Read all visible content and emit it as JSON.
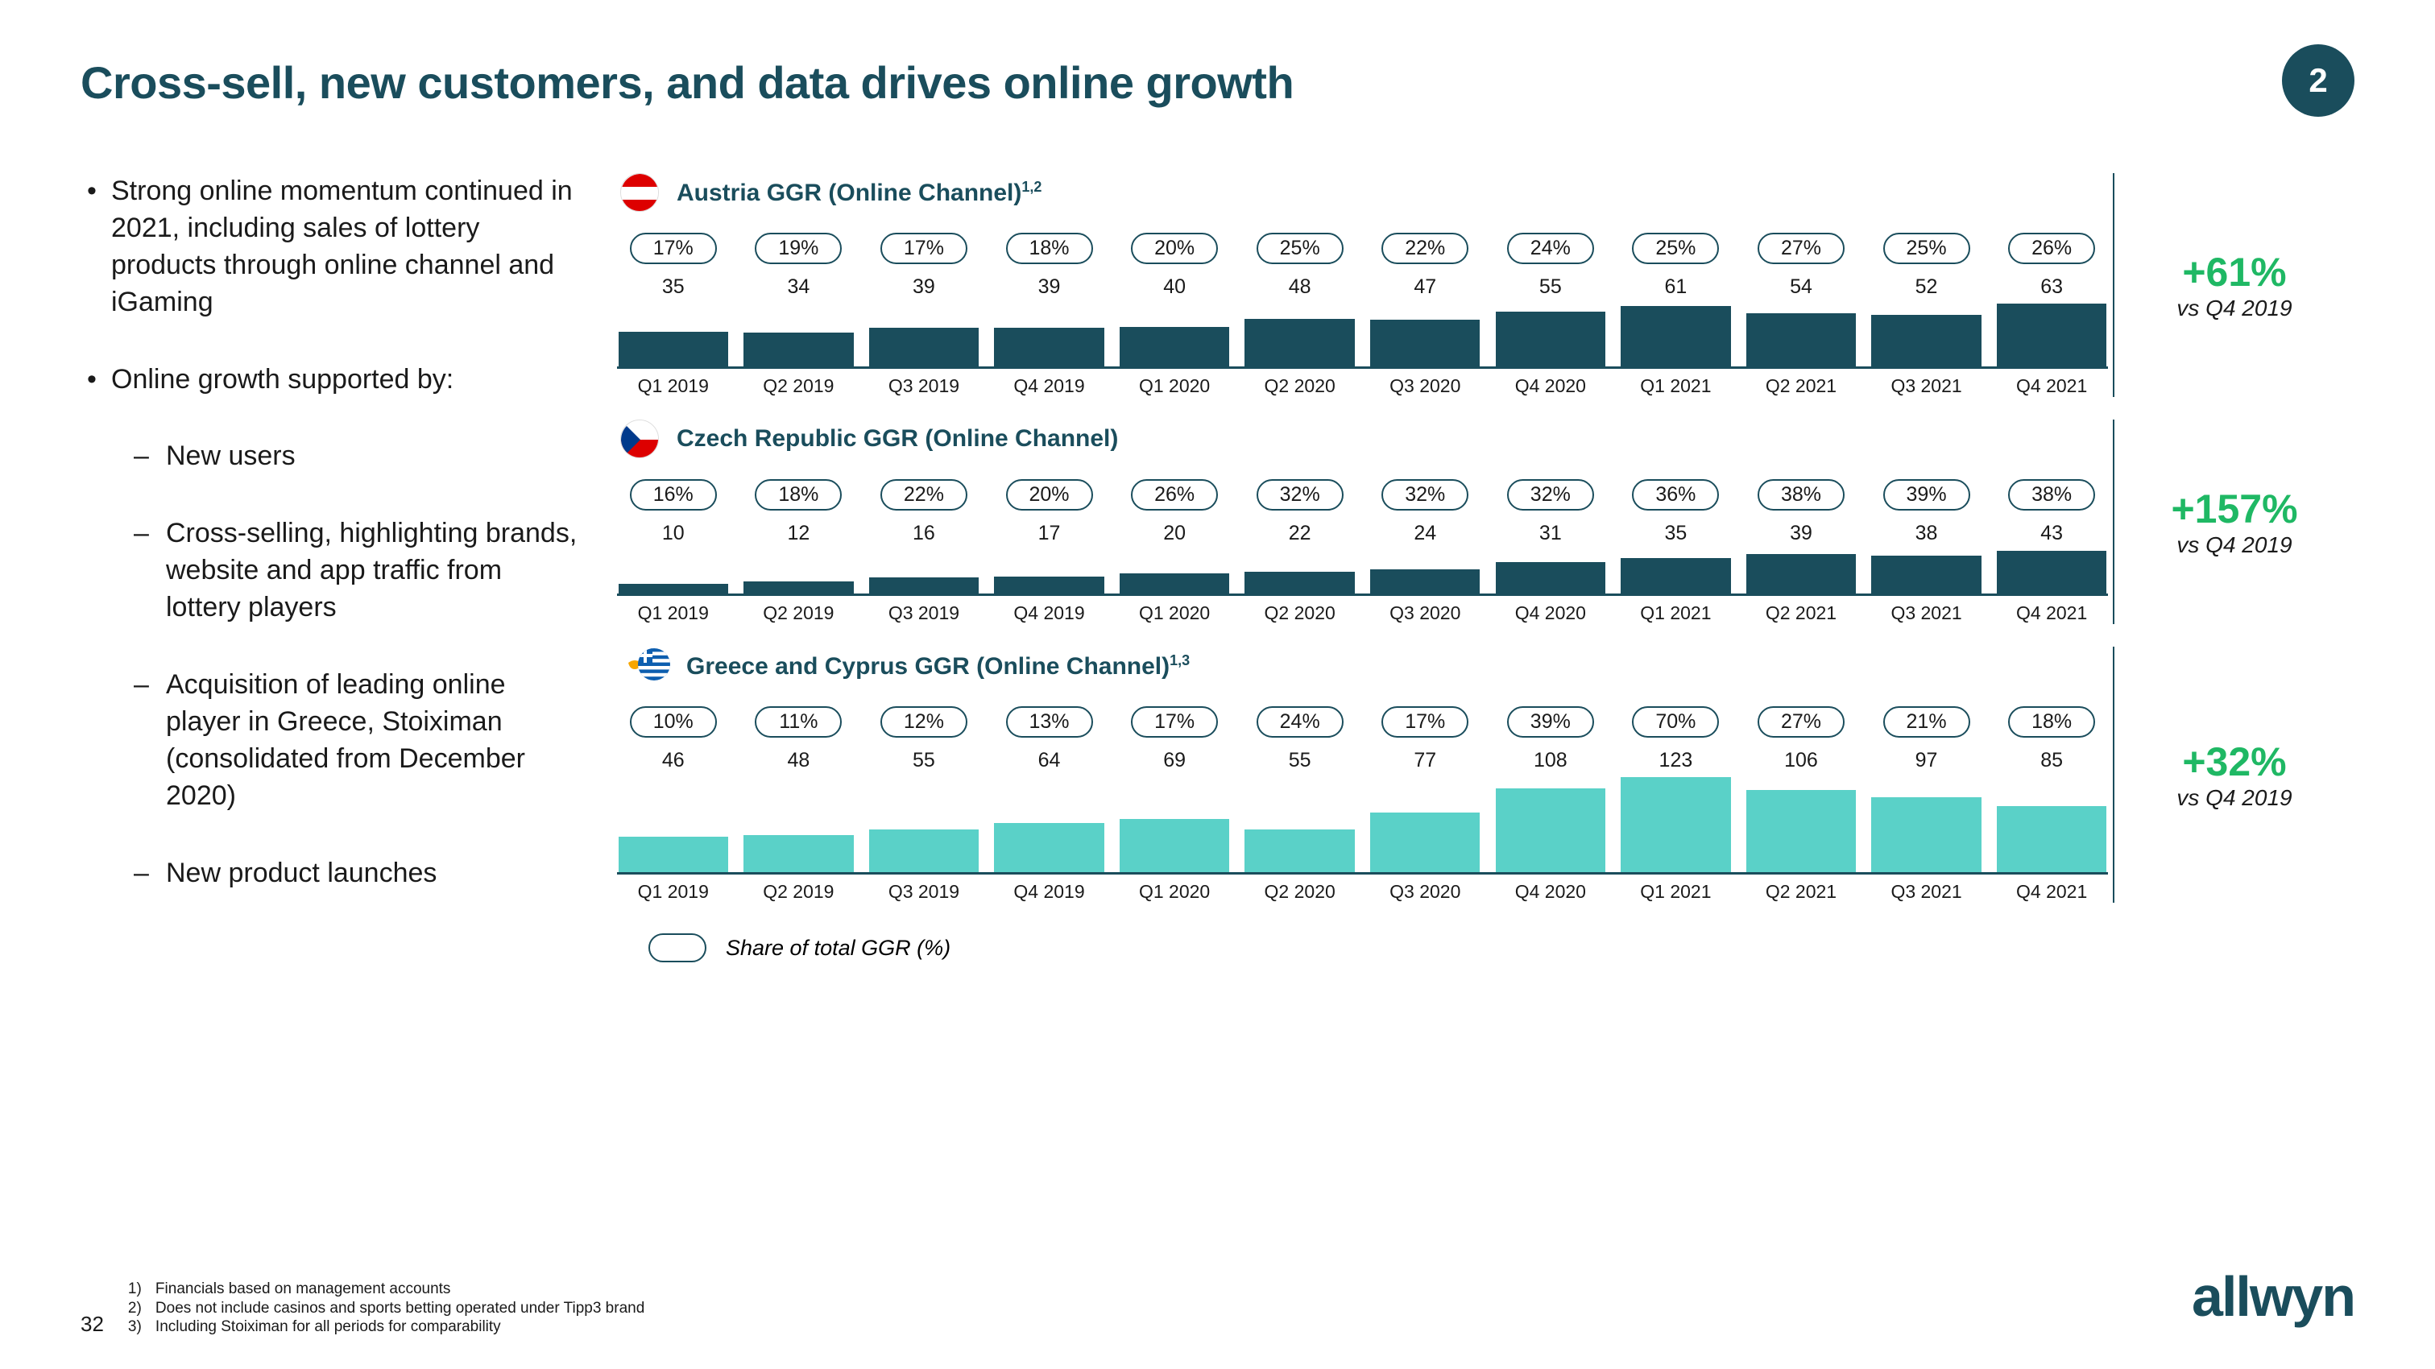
{
  "colors": {
    "brand": "#1a4d5c",
    "growth": "#1fb864",
    "austria_bar": "#1a4d5c",
    "czech_bar": "#1a4d5c",
    "greece_bar": "#5ad1c8",
    "axis": "#1a4d5c",
    "pill_border": "#1a4d5c",
    "text": "#1a1a1a",
    "background": "#ffffff"
  },
  "typography": {
    "title_fontsize": 56,
    "bullet_fontsize": 34,
    "chart_title_fontsize": 30,
    "pill_fontsize": 25,
    "value_fontsize": 25,
    "xlabel_fontsize": 23,
    "growth_val_fontsize": 50,
    "growth_sub_fontsize": 28,
    "legend_fontsize": 27,
    "footnote_fontsize": 19,
    "logo_fontsize": 70
  },
  "title": "Cross-sell, new customers, and data drives online growth",
  "badge": "2",
  "bullets": {
    "b1": "Strong online momentum continued in 2021, including sales of lottery products through online channel and iGaming",
    "b2": "Online growth supported by:",
    "b2a": "New users",
    "b2b": "Cross-selling, highlighting brands, website and app traffic from lottery players",
    "b2c": "Acquisition of leading online player in Greece, Stoiximan (consolidated from December 2020)",
    "b2d": "New product launches"
  },
  "quarters": [
    "Q1 2019",
    "Q2 2019",
    "Q3 2019",
    "Q4 2019",
    "Q1 2020",
    "Q2 2020",
    "Q3 2020",
    "Q4 2020",
    "Q1 2021",
    "Q2 2021",
    "Q3 2021",
    "Q4 2021"
  ],
  "charts": [
    {
      "id": "austria",
      "title": "Austria GGR (Online Channel)",
      "title_sup": "1,2",
      "flag": "austria",
      "bar_color": "#1a4d5c",
      "bar_slot_height": 80,
      "ymax": 65,
      "shares": [
        "17%",
        "19%",
        "17%",
        "18%",
        "20%",
        "25%",
        "22%",
        "24%",
        "25%",
        "27%",
        "25%",
        "26%"
      ],
      "values": [
        35,
        34,
        39,
        39,
        40,
        48,
        47,
        55,
        61,
        54,
        52,
        63
      ],
      "growth": "+61%",
      "growth_sub": "vs Q4 2019"
    },
    {
      "id": "czech",
      "title": "Czech Republic GGR (Online Channel)",
      "title_sup": "",
      "flag": "czech",
      "bar_color": "#1a4d5c",
      "bar_slot_height": 56,
      "ymax": 45,
      "shares": [
        "16%",
        "18%",
        "22%",
        "20%",
        "26%",
        "32%",
        "32%",
        "32%",
        "36%",
        "38%",
        "39%",
        "38%"
      ],
      "values": [
        10,
        12,
        16,
        17,
        20,
        22,
        24,
        31,
        35,
        39,
        38,
        43
      ],
      "growth": "+157%",
      "growth_sub": "vs Q4 2019"
    },
    {
      "id": "greece",
      "title": "Greece and Cyprus GGR (Online Channel)",
      "title_sup": "1,3",
      "flag": "greece_cyprus",
      "bar_color": "#5ad1c8",
      "bar_slot_height": 120,
      "ymax": 125,
      "shares": [
        "10%",
        "11%",
        "12%",
        "13%",
        "17%",
        "24%",
        "17%",
        "39%",
        "70%",
        "27%",
        "21%",
        "18%"
      ],
      "values": [
        46,
        48,
        55,
        64,
        69,
        55,
        77,
        108,
        123,
        106,
        97,
        85
      ],
      "growth": "+32%",
      "growth_sub": "vs Q4 2019"
    }
  ],
  "legend": "Share of total GGR (%)",
  "page_number": "32",
  "footnotes": [
    "Financials based on management accounts",
    "Does not include casinos and sports betting operated under Tipp3 brand",
    "Including Stoiximan for all periods for comparability"
  ],
  "logo": "allwyn"
}
